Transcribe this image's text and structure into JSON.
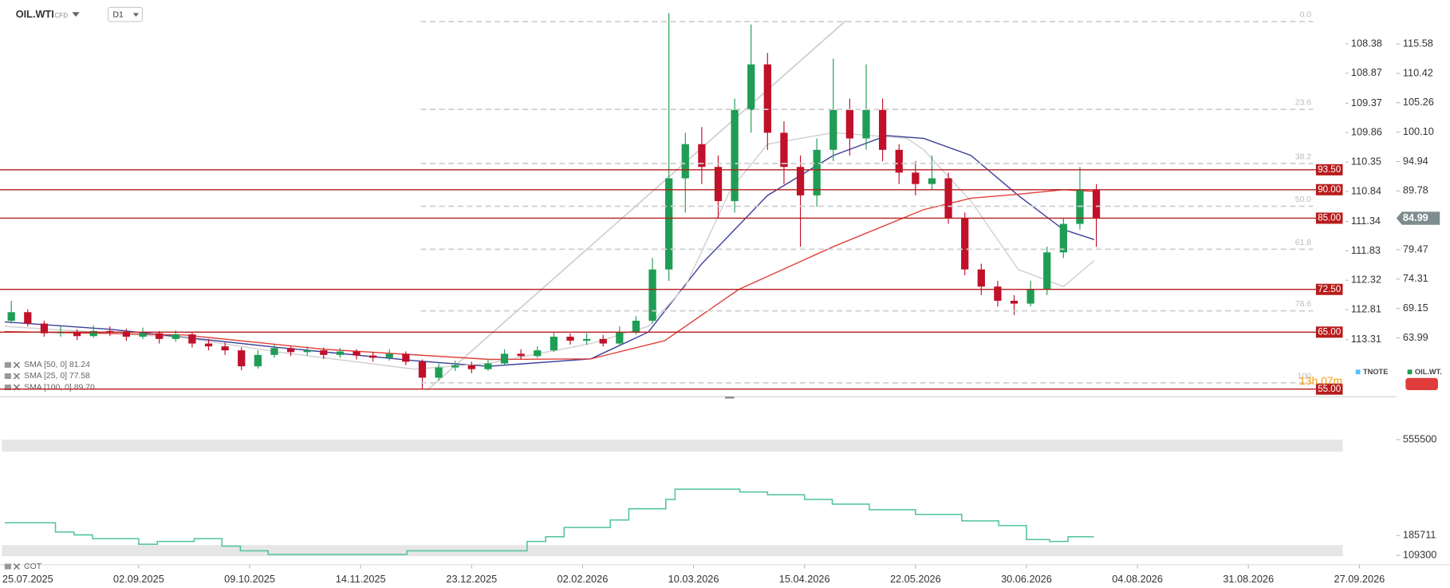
{
  "header": {
    "symbol": "OIL.WTI",
    "tag": "CFD",
    "timeframe": "D1"
  },
  "chart_data": [
    {
      "type": "candlestick",
      "up_color": "#1f9d55",
      "down_color": "#c0102a",
      "x": [
        -4,
        0,
        4,
        8,
        12,
        16,
        20,
        24,
        28,
        32,
        36,
        40,
        44,
        48,
        52,
        56,
        60,
        64,
        68,
        72,
        76,
        80,
        84,
        88,
        92,
        96,
        100,
        104,
        108,
        112,
        116,
        120,
        124,
        128,
        132,
        136,
        140,
        144,
        148,
        152,
        156,
        160,
        164,
        168,
        172,
        176,
        180,
        184,
        188,
        192,
        196,
        200,
        204,
        208,
        212,
        216,
        220,
        224,
        228,
        232,
        236,
        240,
        244,
        248,
        252,
        256,
        260
      ],
      "open": [
        67,
        68.5,
        66.5,
        64.8,
        65,
        64.3,
        65.2,
        65,
        64.2,
        64.8,
        63.8,
        64.6,
        63,
        62.5,
        61.8,
        59,
        61,
        62.2,
        61.5,
        61.8,
        61,
        61.6,
        60.9,
        60.5,
        61.2,
        59.8,
        57,
        58.8,
        59.2,
        58.5,
        59.5,
        61.2,
        60.8,
        61.8,
        64.2,
        63.5,
        63.8,
        63,
        65,
        67,
        76,
        92,
        98,
        94,
        88,
        104,
        112,
        100,
        94,
        89,
        97,
        104,
        99,
        104,
        97,
        93,
        91,
        92,
        85,
        76,
        73,
        70.5,
        70,
        72.5,
        79,
        84,
        90
      ],
      "high": [
        70.5,
        69,
        67,
        66,
        65.5,
        66.2,
        66,
        65.6,
        65.8,
        65.2,
        65.3,
        65,
        63.8,
        63.2,
        62.3,
        61.8,
        62.8,
        62.6,
        62.5,
        62.3,
        62.2,
        62,
        61.5,
        62,
        61.6,
        60.2,
        59.5,
        60,
        59.8,
        60.3,
        62,
        62,
        62.5,
        65,
        64.8,
        64.8,
        64.5,
        66,
        67.8,
        78,
        121,
        100,
        101,
        96,
        106,
        119,
        114,
        102,
        96,
        99,
        113,
        106,
        112,
        106,
        98,
        95,
        96,
        93,
        86,
        77,
        74,
        71.5,
        74,
        80,
        85,
        94,
        91
      ],
      "low": [
        66.5,
        66,
        64.2,
        64.2,
        63.6,
        64,
        64.3,
        63.5,
        63.8,
        63,
        63.3,
        62.3,
        61.8,
        61,
        58.3,
        58.6,
        60.5,
        60.8,
        60.9,
        60.3,
        60.5,
        60.2,
        59.8,
        60,
        59.2,
        55,
        56.5,
        58.2,
        57.8,
        58.2,
        59.2,
        60.2,
        60.5,
        61.5,
        62.8,
        62.8,
        62.5,
        62.6,
        64.6,
        66.5,
        74,
        86,
        91,
        85,
        86,
        100,
        97,
        91,
        80,
        87,
        95,
        96,
        97,
        95,
        91,
        89,
        90,
        84,
        75,
        71.5,
        69.5,
        68,
        69.5,
        71.5,
        78,
        83,
        80
      ],
      "close": [
        68.5,
        66.5,
        64.8,
        65,
        64.3,
        65.2,
        65,
        64.2,
        64.8,
        63.8,
        64.6,
        63,
        62.5,
        61.8,
        59,
        61,
        62.2,
        61.5,
        61.8,
        61,
        61.6,
        60.9,
        60.5,
        61.2,
        59.8,
        57,
        58.8,
        59.2,
        58.5,
        59.5,
        61.2,
        60.8,
        61.8,
        64.2,
        63.5,
        63.8,
        63,
        65,
        67,
        76,
        92,
        98,
        94,
        88,
        104,
        112,
        100,
        94,
        89,
        97,
        104,
        99,
        104,
        97,
        93,
        91,
        92,
        85,
        76,
        73,
        70.5,
        70,
        72.5,
        79,
        84,
        90,
        84.99
      ],
      "series": [
        {
          "name": "SMA [50, 0] 81.24",
          "color": "#3b3f9a",
          "x": [
            -5.6,
            20,
            61,
            94,
            112,
            137,
            151,
            164,
            180,
            196,
            209,
            218,
            229.5,
            241,
            252,
            259.5
          ],
          "values": [
            66.8,
            65.5,
            62.3,
            60,
            59,
            60.3,
            65,
            77,
            89,
            96,
            99.5,
            99,
            96,
            89,
            83,
            81.24
          ]
        },
        {
          "name": "SMA [25, 0] 77.58",
          "color": "#cfcfcf",
          "x": [
            -5.6,
            38,
            61,
            94,
            112,
            137,
            151,
            160,
            171,
            180,
            196,
            214,
            218,
            229.5,
            241,
            252,
            259.5
          ],
          "values": [
            66,
            64,
            61.5,
            58.5,
            59.5,
            63,
            66,
            73,
            90,
            98,
            100,
            99,
            97,
            88,
            76,
            73,
            77.58
          ]
        },
        {
          "name": "SMA [100, 0] 89.70",
          "color": "#e0413a",
          "x": [
            -5.6,
            38,
            72,
            112.5,
            137,
            155,
            173,
            196,
            218,
            229.5,
            241,
            252,
            259.5
          ],
          "values": [
            65.1,
            64.5,
            62,
            60.2,
            60.3,
            63.5,
            72.5,
            80,
            86.5,
            88.5,
            89.2,
            90,
            89.7
          ]
        }
      ],
      "xlim": [
        -6.75,
        324
      ],
      "xticks": [
        {
          "value": 0,
          "label": "25.07.2025"
        },
        {
          "value": 27,
          "label": "02.09.2025"
        },
        {
          "value": 54,
          "label": "09.10.2025"
        },
        {
          "value": 81,
          "label": "14.11.2025"
        },
        {
          "value": 108,
          "label": "23.12.2025"
        },
        {
          "value": 135,
          "label": "02.02.2026"
        },
        {
          "value": 162,
          "label": "10.03.2026"
        },
        {
          "value": 189,
          "label": "15.04.2026"
        },
        {
          "value": 216,
          "label": "22.05.2026"
        },
        {
          "value": 243,
          "label": "30.06.2026"
        },
        {
          "value": 270,
          "label": "04.08.2026"
        },
        {
          "value": 297,
          "label": "31.08.2026"
        },
        {
          "value": 324,
          "label": "27.09.2026"
        }
      ],
      "ylim": [
        53.67,
        123.3
      ],
      "yticks": [
        115.58,
        110.42,
        105.26,
        {
          "value": 100.1,
          "label": "100.10"
        },
        94.94,
        89.78,
        79.47,
        74.31,
        69.15,
        63.99
      ],
      "y2lim": [
        114.26,
        107.65
      ],
      "y2ticks": [
        108.38,
        108.87,
        109.37,
        109.86,
        110.35,
        110.84,
        111.34,
        111.83,
        112.32,
        112.81,
        113.31
      ],
      "levels": [
        {
          "value": 93.5,
          "label": "93.50"
        },
        {
          "value": 90,
          "label": "90.00"
        },
        {
          "value": 85,
          "label": "85.00"
        },
        {
          "value": 72.5,
          "label": "72.50"
        },
        {
          "value": 65,
          "label": "65.00"
        },
        {
          "value": 55,
          "label": "55.00"
        }
      ],
      "level_color": "#b71c1c",
      "fib": {
        "ratios": [
          "0.0",
          "23.6",
          "38.2",
          "50.0",
          "61.8",
          "78.6",
          "100"
        ],
        "prices": [
          119.5,
          104.1,
          94.6,
          87.1,
          79.55,
          68.74,
          56.1
        ]
      },
      "trendline": {
        "x": [
          97.2,
          199.1
        ],
        "y": [
          54.8,
          119.7
        ]
      },
      "last_price": 84.99,
      "legend": [
        {
          "name": "TNOTE",
          "color": "#4fc3f7"
        },
        {
          "name": "OIL.WT.",
          "color": "#1f9d55"
        }
      ],
      "timer": "13h 07m"
    },
    {
      "type": "line",
      "step": true,
      "series": [
        {
          "name": "COT",
          "color": "#4fc39a",
          "x": [
            -5.6,
            6.75,
            11.25,
            15.75,
            27,
            31.5,
            40.5,
            47.25,
            51.75,
            58.5,
            92.25,
            121.5,
            126,
            130.5,
            141.75,
            146.25,
            155.25,
            157.5,
            173.25,
            180,
            189,
            195.75,
            204.75,
            216,
            227.25,
            236.25,
            243,
            248.6,
            253.1,
            259.4
          ],
          "values": [
            235100,
            199100,
            188300,
            174000,
            152300,
            163100,
            174000,
            145100,
            127100,
            112700,
            127100,
            163100,
            181100,
            217100,
            245900,
            289100,
            325100,
            364700,
            353900,
            343100,
            325100,
            307100,
            285500,
            267500,
            242300,
            224300,
            170300,
            163100,
            181100,
            181100
          ]
        }
      ],
      "xlim": [
        -6.75,
        324
      ],
      "ylim": [
        91500,
        613100
      ],
      "yticks": [
        555500,
        185711,
        109300
      ]
    }
  ]
}
